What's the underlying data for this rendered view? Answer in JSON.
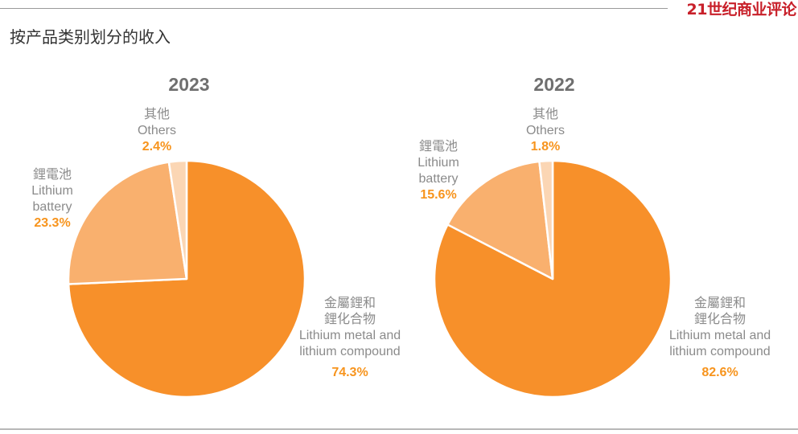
{
  "header": {
    "brand": "21世纪商业评论",
    "title": "按产品类别划分的收入"
  },
  "colors": {
    "main": "#f7902a",
    "battery": "#f9b06e",
    "others": "#fbd6b4",
    "label": "#8b8b8b",
    "pct": "#f7941d"
  },
  "chart_data": [
    {
      "type": "pie",
      "title": "2023",
      "slices": [
        {
          "zh": "金屬鋰和",
          "zh2": "鋰化合物",
          "en": "Lithium metal and",
          "en2": "lithium compound",
          "value": 74.3,
          "pct": "74.3%"
        },
        {
          "zh": "鋰電池",
          "en": "Lithium",
          "en2": "battery",
          "value": 23.3,
          "pct": "23.3%"
        },
        {
          "zh": "其他",
          "en": "Others",
          "value": 2.4,
          "pct": "2.4%"
        }
      ]
    },
    {
      "type": "pie",
      "title": "2022",
      "slices": [
        {
          "zh": "金屬鋰和",
          "zh2": "鋰化合物",
          "en": "Lithium metal and",
          "en2": "lithium compound",
          "value": 82.6,
          "pct": "82.6%"
        },
        {
          "zh": "鋰電池",
          "en": "Lithium",
          "en2": "battery",
          "value": 15.6,
          "pct": "15.6%"
        },
        {
          "zh": "其他",
          "en": "Others",
          "value": 1.8,
          "pct": "1.8%"
        }
      ]
    }
  ]
}
